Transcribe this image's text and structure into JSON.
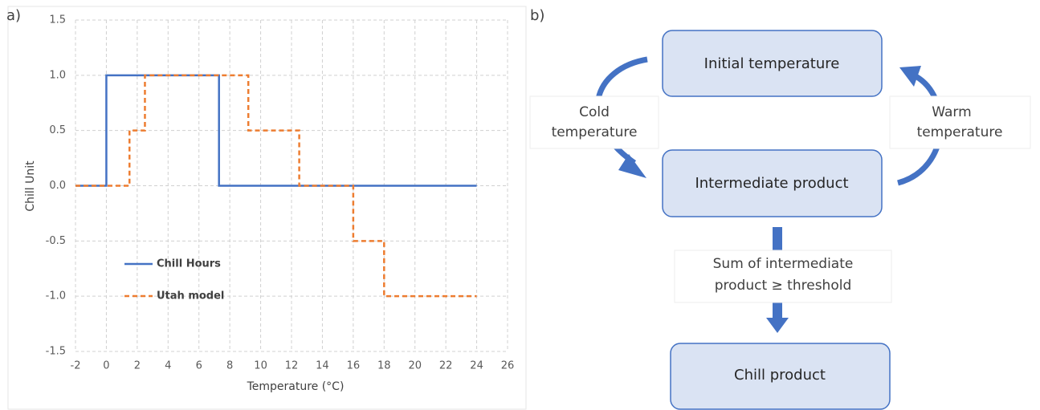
{
  "panel_labels": [
    "a)",
    "b)"
  ],
  "chart_data": {
    "type": "line",
    "xlabel": "Temperature (°C)",
    "ylabel": "Chill Unit",
    "xlim": [
      -2,
      26
    ],
    "xticks": [
      -2,
      0,
      2,
      4,
      6,
      8,
      10,
      12,
      14,
      16,
      18,
      20,
      22,
      24,
      26
    ],
    "ylim": [
      -1.5,
      1.5
    ],
    "yticks": [
      -1.5,
      {
        "value": -1,
        "label": "-1.0"
      },
      -0.5,
      {
        "value": 0,
        "label": "0.0"
      },
      0.5,
      {
        "value": 1,
        "label": "1.0"
      },
      1.5
    ],
    "grid": true,
    "series": [
      {
        "name": "Chill Hours",
        "color": "#4472c4",
        "dashed": false,
        "x": [
          -2,
          0,
          0,
          7.3,
          7.3,
          24
        ],
        "values": [
          0,
          0,
          1,
          1,
          0,
          0
        ]
      },
      {
        "name": "Utah model",
        "color": "#ed7d31",
        "dashed": true,
        "x": [
          -2,
          1.5,
          1.5,
          2.5,
          2.5,
          9.2,
          9.2,
          12.5,
          12.5,
          16,
          16,
          18,
          18,
          24
        ],
        "values": [
          0,
          0,
          0.5,
          0.5,
          1,
          1,
          0.5,
          0.5,
          0,
          0,
          -0.5,
          -0.5,
          -1,
          -1
        ]
      }
    ]
  },
  "diagram": {
    "nodes": [
      {
        "label": "Initial temperature"
      },
      {
        "label": "Intermediate product"
      },
      {
        "label": "Chill product"
      }
    ],
    "edges": [
      {
        "label": [
          "Cold",
          "temperature"
        ]
      },
      {
        "label": [
          "Warm",
          "temperature"
        ]
      },
      {
        "label": [
          "Sum of intermediate",
          "product ≥ threshold"
        ]
      }
    ]
  }
}
